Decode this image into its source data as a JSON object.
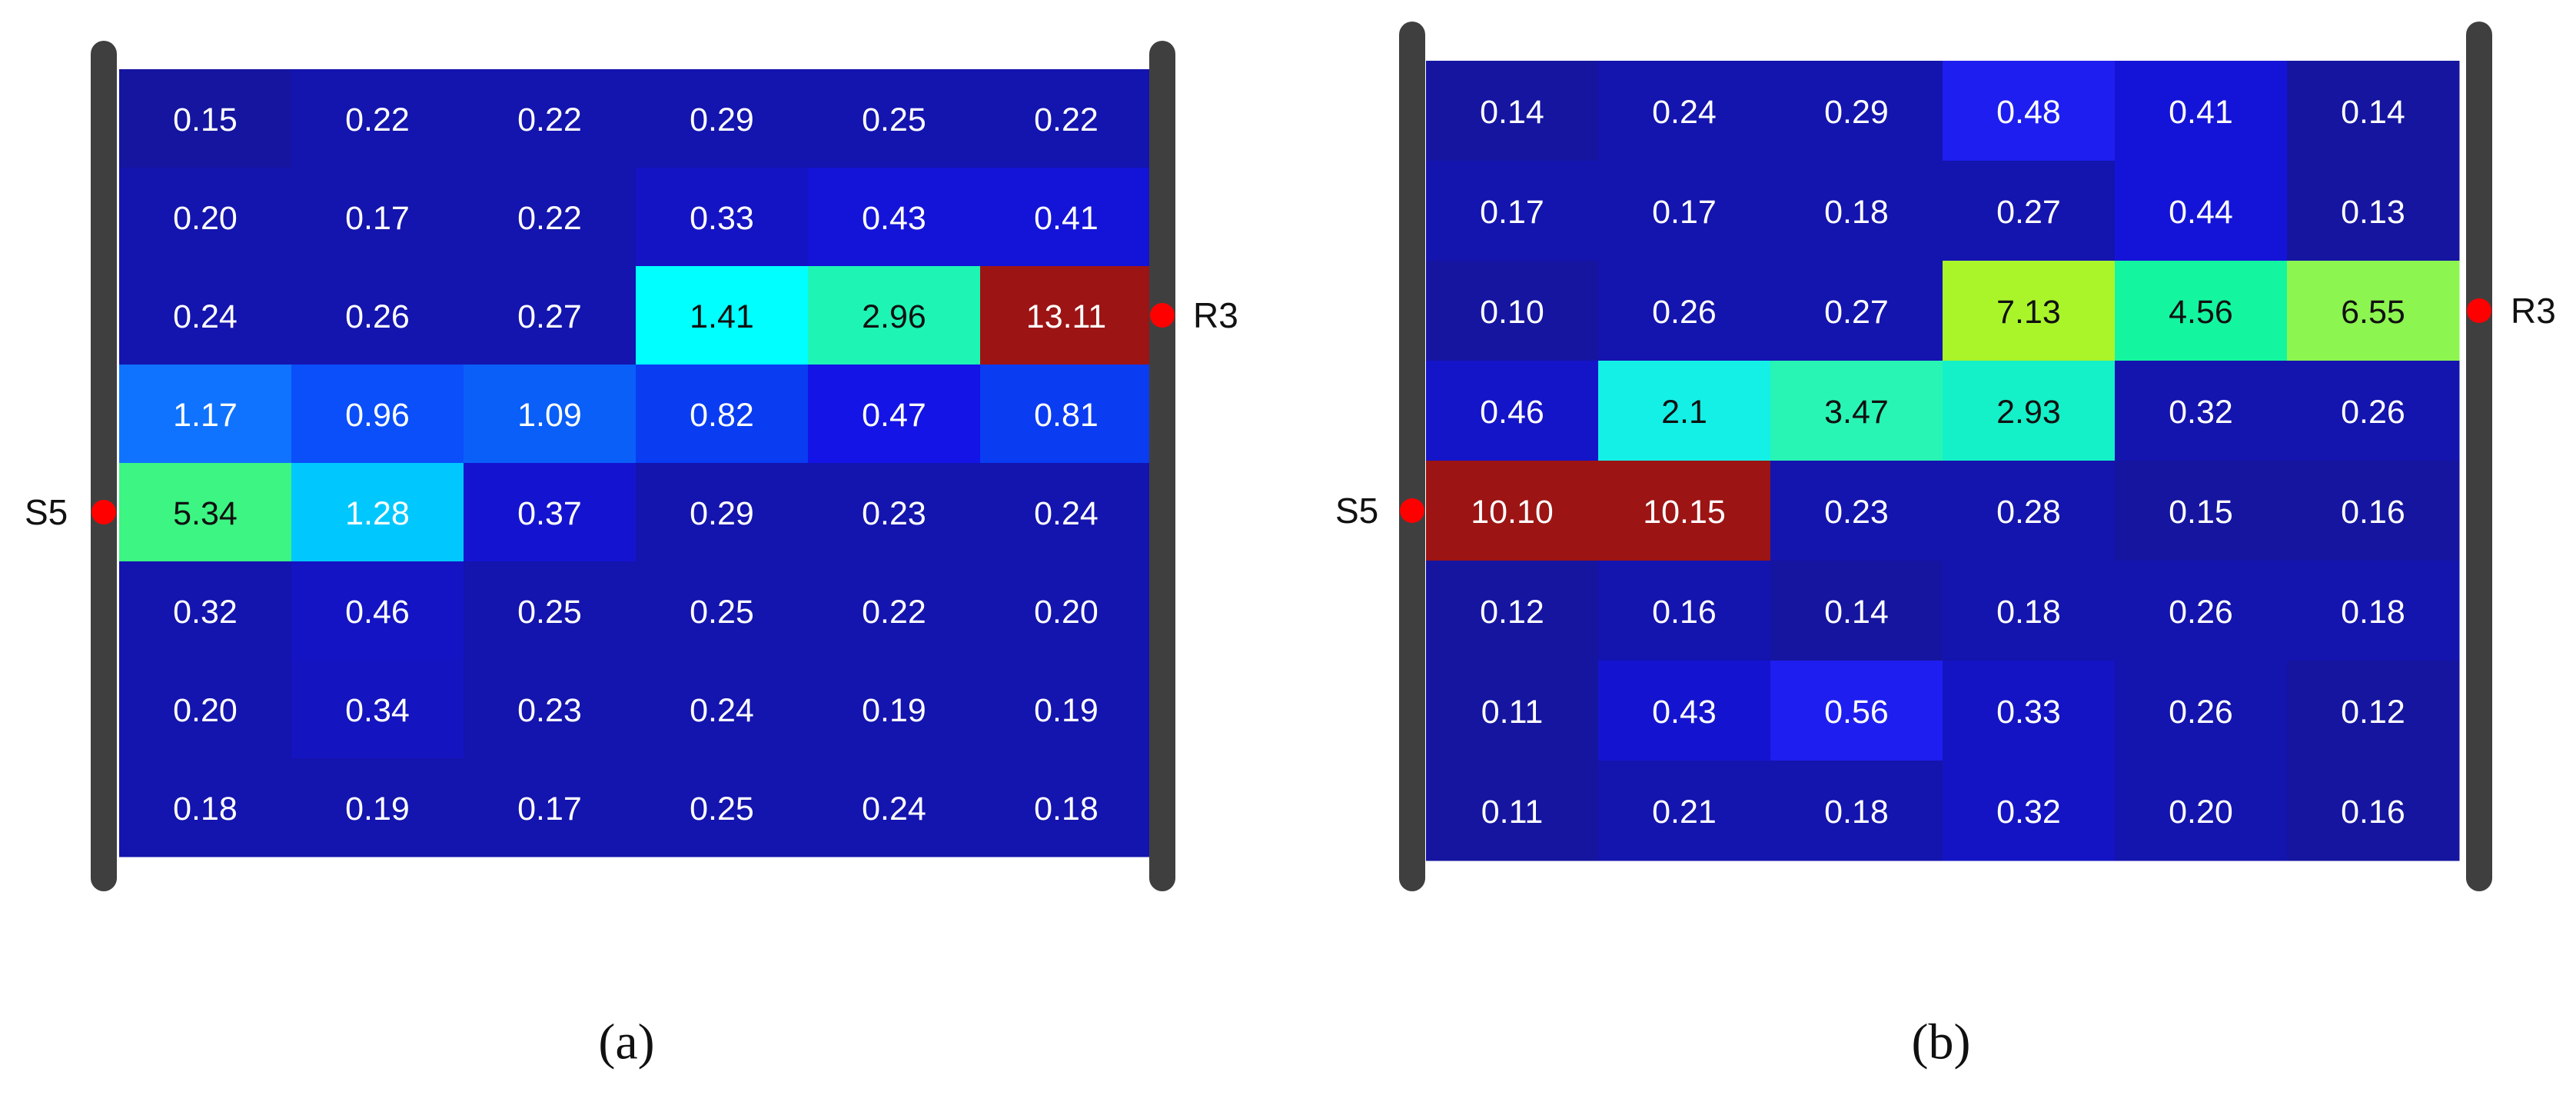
{
  "chart_data": [
    {
      "type": "heatmap",
      "caption": "(a)",
      "source_label": "S5",
      "receiver_label": "R3",
      "source_row": 4,
      "receiver_row": 2,
      "values": [
        [
          "0.15",
          "0.22",
          "0.22",
          "0.29",
          "0.25",
          "0.22"
        ],
        [
          "0.20",
          "0.17",
          "0.22",
          "0.33",
          "0.43",
          "0.41"
        ],
        [
          "0.24",
          "0.26",
          "0.27",
          "1.41",
          "2.96",
          "13.11"
        ],
        [
          "1.17",
          "0.96",
          "1.09",
          "0.82",
          "0.47",
          "0.81"
        ],
        [
          "5.34",
          "1.28",
          "0.37",
          "0.29",
          "0.23",
          "0.24"
        ],
        [
          "0.32",
          "0.46",
          "0.25",
          "0.25",
          "0.22",
          "0.20"
        ],
        [
          "0.20",
          "0.34",
          "0.23",
          "0.24",
          "0.19",
          "0.19"
        ],
        [
          "0.18",
          "0.19",
          "0.17",
          "0.25",
          "0.24",
          "0.18"
        ]
      ],
      "colors": [
        [
          "#1515a0",
          "#1414ae",
          "#1414ae",
          "#1414ae",
          "#1414ae",
          "#1414ae"
        ],
        [
          "#1414ae",
          "#1414ae",
          "#1414ae",
          "#1414c4",
          "#1414d8",
          "#1414d8"
        ],
        [
          "#1414ae",
          "#1414ae",
          "#1414ae",
          "#00ffff",
          "#1ef5b4",
          "#9c1414"
        ],
        [
          "#0f73ff",
          "#0a4ffa",
          "#0a5ff8",
          "#0a3cf2",
          "#1414e6",
          "#0a3cf2"
        ],
        [
          "#3cf582",
          "#00c8ff",
          "#1414d0",
          "#1414ae",
          "#1414ae",
          "#1414ae"
        ],
        [
          "#1414ae",
          "#1414c4",
          "#1414ae",
          "#1414ae",
          "#1414ae",
          "#1414ae"
        ],
        [
          "#1414ae",
          "#1414c0",
          "#1414ae",
          "#1414ae",
          "#1414ae",
          "#1414ae"
        ],
        [
          "#1414ae",
          "#1414ae",
          "#1414ae",
          "#1414ae",
          "#1414ae",
          "#1414ae"
        ]
      ]
    },
    {
      "type": "heatmap",
      "caption": "(b)",
      "source_label": "S5",
      "receiver_label": "R3",
      "source_row": 4,
      "receiver_row": 2,
      "values": [
        [
          "0.14",
          "0.24",
          "0.29",
          "0.48",
          "0.41",
          "0.14"
        ],
        [
          "0.17",
          "0.17",
          "0.18",
          "0.27",
          "0.44",
          "0.13"
        ],
        [
          "0.10",
          "0.26",
          "0.27",
          "7.13",
          "4.56",
          "6.55"
        ],
        [
          "0.46",
          "2.1",
          "3.47",
          "2.93",
          "0.32",
          "0.26"
        ],
        [
          "10.10",
          "10.15",
          "0.23",
          "0.28",
          "0.15",
          "0.16"
        ],
        [
          "0.12",
          "0.16",
          "0.14",
          "0.18",
          "0.26",
          "0.18"
        ],
        [
          "0.11",
          "0.43",
          "0.56",
          "0.33",
          "0.26",
          "0.12"
        ],
        [
          "0.11",
          "0.21",
          "0.18",
          "0.32",
          "0.20",
          "0.16"
        ]
      ],
      "colors": [
        [
          "#1515a0",
          "#1414ae",
          "#1414ae",
          "#1e1ef0",
          "#1414d8",
          "#1515a0"
        ],
        [
          "#1414ae",
          "#1414ae",
          "#1414ae",
          "#1414ae",
          "#1414d8",
          "#1515a0"
        ],
        [
          "#1515a0",
          "#1414ae",
          "#1414ae",
          "#aaf52a",
          "#14f5a0",
          "#8cf550"
        ],
        [
          "#1414c8",
          "#14f0e6",
          "#28f5b4",
          "#14f0c8",
          "#1414ae",
          "#1414ae"
        ],
        [
          "#9c1414",
          "#9c1414",
          "#1414ae",
          "#1414ae",
          "#1515a0",
          "#1515a0"
        ],
        [
          "#1515a0",
          "#1414ae",
          "#1515a0",
          "#1414ae",
          "#1414ae",
          "#1414ae"
        ],
        [
          "#1515a0",
          "#1414d0",
          "#1e1ef0",
          "#1414c4",
          "#1414ae",
          "#1515a0"
        ],
        [
          "#1515a0",
          "#1414ae",
          "#1414ae",
          "#1414c4",
          "#1414ae",
          "#1515a0"
        ]
      ]
    }
  ],
  "style": {
    "background": "#ffffff",
    "wall_color": "#3f3f3f",
    "marker_color": "#ff0000",
    "label_color": "#111111"
  }
}
